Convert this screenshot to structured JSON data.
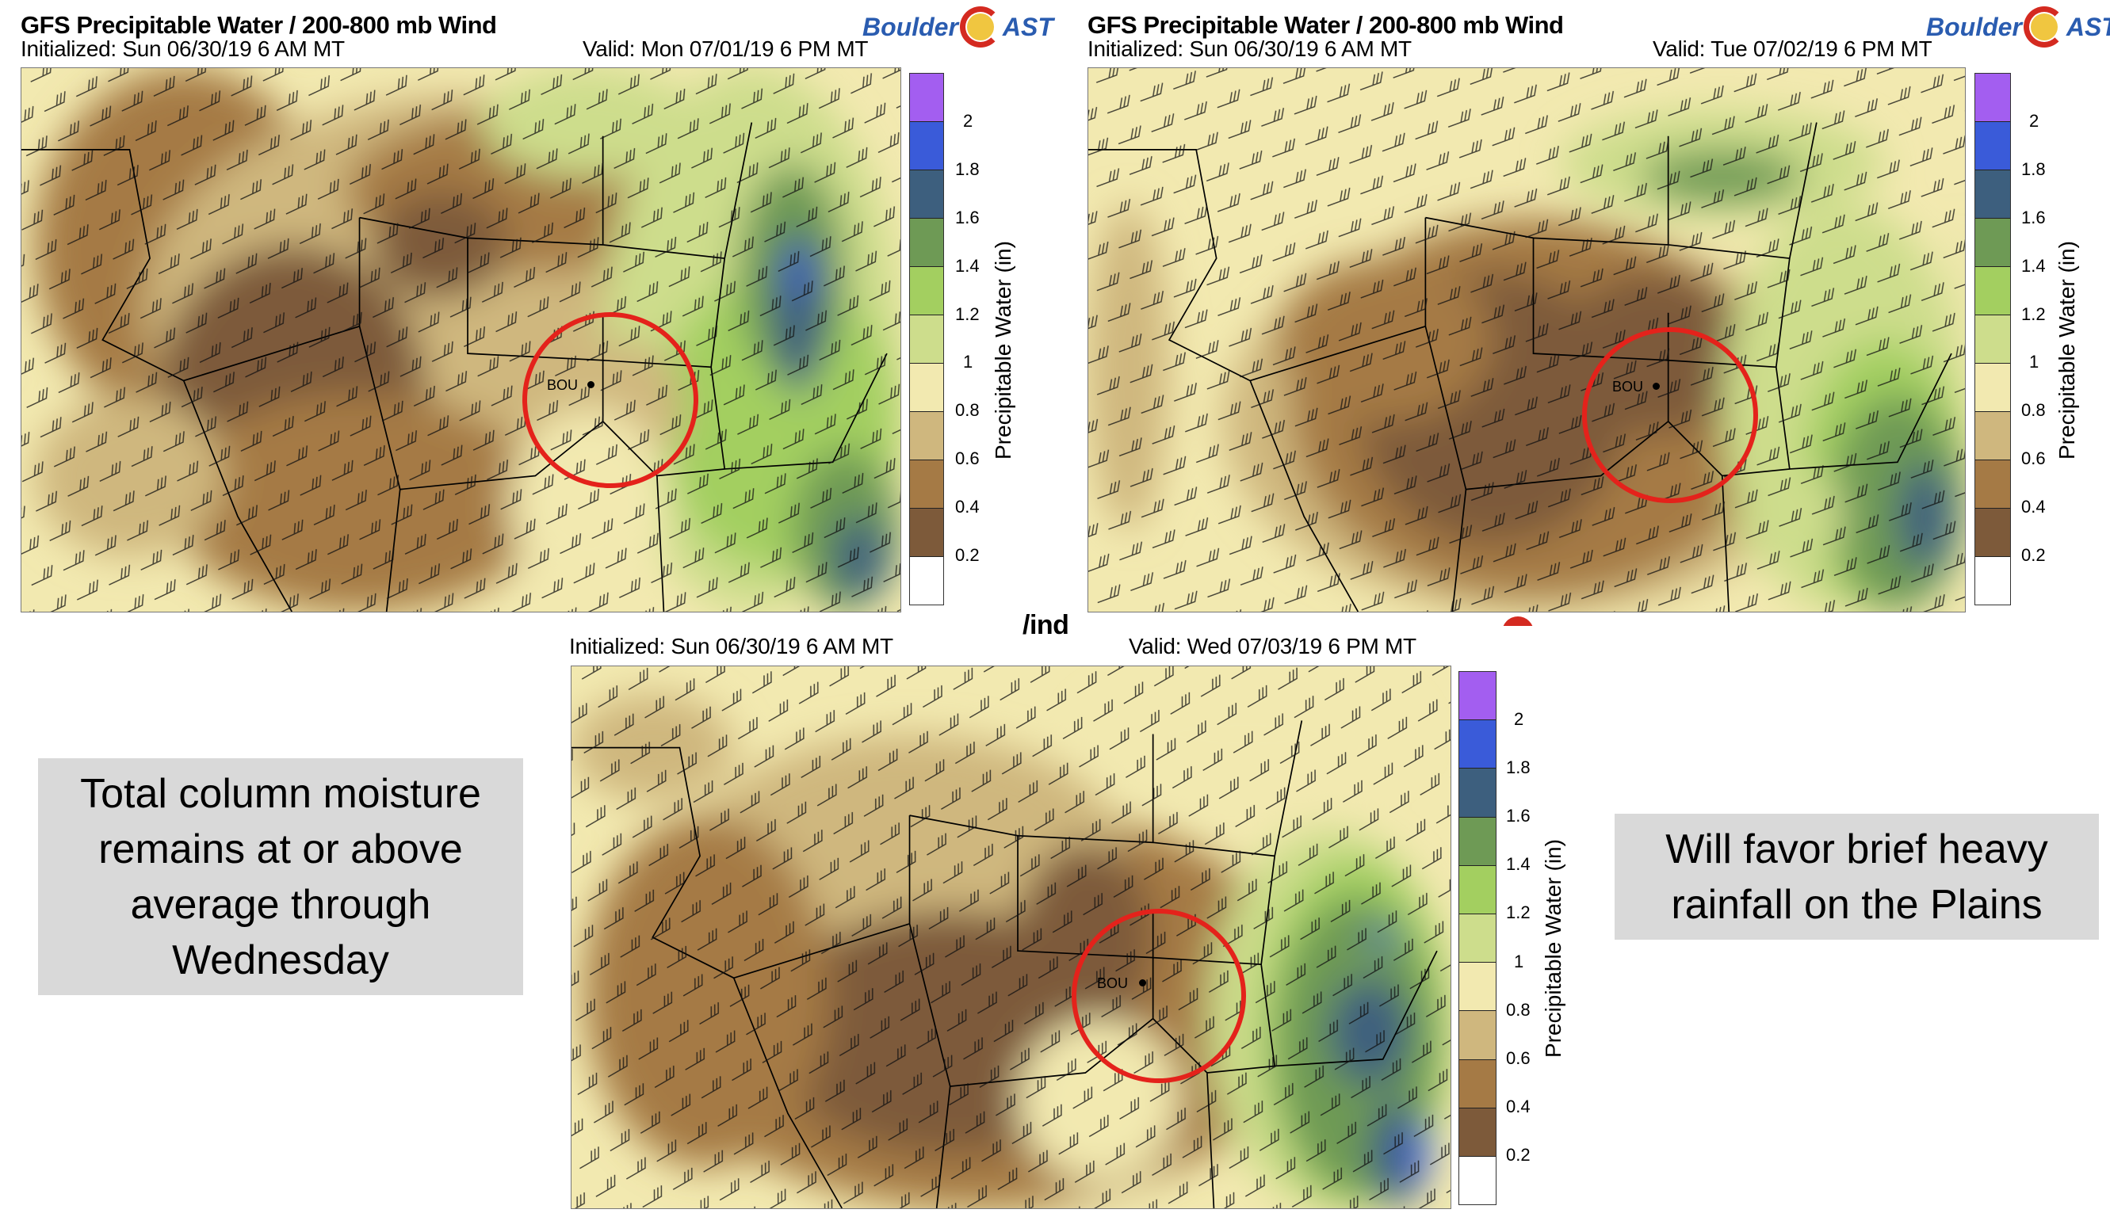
{
  "panels": [
    {
      "title": "GFS Precipitable Water / 200-800 mb Wind",
      "initialized": "Initialized: Sun 06/30/19 6 AM MT",
      "valid": "Valid: Mon 07/01/19 6 PM MT",
      "station": "BOU"
    },
    {
      "title": "GFS Precipitable Water / 200-800 mb Wind",
      "initialized": "Initialized: Sun 06/30/19 6 AM MT",
      "valid": "Valid: Tue 07/02/19 6 PM MT",
      "station": "BOU"
    },
    {
      "title_partial": "/ind",
      "initialized": "Initialized: Sun 06/30/19 6 AM MT",
      "valid": "Valid: Wed 07/03/19 6 PM MT",
      "station": "BOU"
    }
  ],
  "logo": {
    "text_left": "Boulder",
    "text_right": "AST"
  },
  "colorbar": {
    "label": "Precipitable Water (in)",
    "ticks": [
      "2",
      "1.8",
      "1.6",
      "1.4",
      "1.2",
      "1",
      "0.8",
      "0.6",
      "0.4",
      "0.2"
    ],
    "colors": [
      "#a35ef0",
      "#3a5bd9",
      "#3d5f7e",
      "#6e9a55",
      "#a3cf60",
      "#cddd8c",
      "#f2e9b0",
      "#cfb77e",
      "#a57a45",
      "#7d5a3a",
      "#ffffff"
    ]
  },
  "annotations": {
    "left": "Total column moisture remains at or above average through Wednesday",
    "right": "Will favor brief heavy rainfall on the Plains"
  },
  "highlight_color": "#e4221b"
}
